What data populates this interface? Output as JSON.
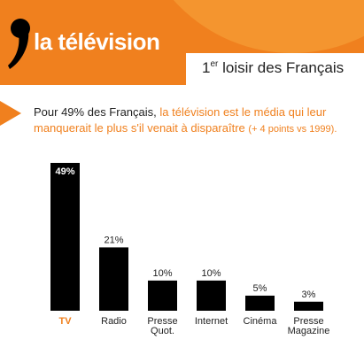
{
  "header": {
    "brand": "la télévision",
    "rank_number": "1",
    "rank_suffix": "er",
    "rank_rest": "loisir des Français"
  },
  "statement": {
    "prefix": "Pour ",
    "percent": "49%",
    "audience": "des Français,",
    "main": "la télévision est le média qui leur manquerait le plus s'il venait à disparaître",
    "note": "(+ 4 points vs 1999)."
  },
  "colors": {
    "accent": "#f0801e",
    "bar": "#000000",
    "text": "#222222"
  },
  "chart_data": {
    "type": "bar",
    "categories": [
      "TV",
      "Radio",
      "Presse Quot.",
      "Internet",
      "Cinéma",
      "Presse Magazine"
    ],
    "category_lines": [
      [
        "TV"
      ],
      [
        "Radio"
      ],
      [
        "Presse",
        "Quot."
      ],
      [
        "Internet"
      ],
      [
        "Cinéma"
      ],
      [
        "Presse",
        "Magazine"
      ]
    ],
    "values": [
      49,
      21,
      10,
      10,
      5,
      3
    ],
    "value_labels": [
      "49%",
      "21%",
      "10%",
      "10%",
      "5%",
      "3%"
    ],
    "unit": "%",
    "highlight_category": "TV",
    "ylim": [
      0,
      49
    ],
    "title": "",
    "xlabel": "",
    "ylabel": ""
  }
}
